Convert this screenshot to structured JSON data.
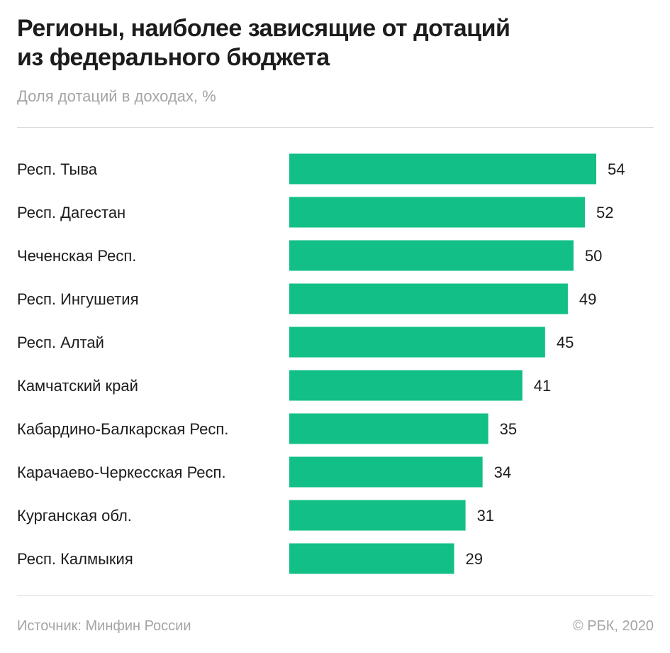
{
  "colors": {
    "bar": "#12bf86",
    "text": "#1c1c1c",
    "muted": "#a4a4a4",
    "rule": "#d9d9d9"
  },
  "chart_data": {
    "type": "bar",
    "orientation": "horizontal",
    "title_lines": [
      "Регионы, наиболее зависящие от дотаций",
      "из федерального бюджета"
    ],
    "subtitle": "Доля дотаций в доходах, %",
    "categories": [
      "Респ. Тыва",
      "Респ. Дагестан",
      "Чеченская Респ.",
      "Респ. Ингушетия",
      "Респ. Алтай",
      "Камчатский край",
      "Кабардино-Балкарская Респ.",
      "Карачаево-Черкесская Респ.",
      "Курганская обл.",
      "Респ. Калмыкия"
    ],
    "values": [
      54,
      52,
      50,
      49,
      45,
      41,
      35,
      34,
      31,
      29
    ],
    "xlim": [
      0,
      54
    ],
    "grid": false,
    "legend": "none",
    "unit": "%"
  },
  "footer": {
    "source": "Источник: Минфин России",
    "credit": "© РБК, 2020"
  }
}
